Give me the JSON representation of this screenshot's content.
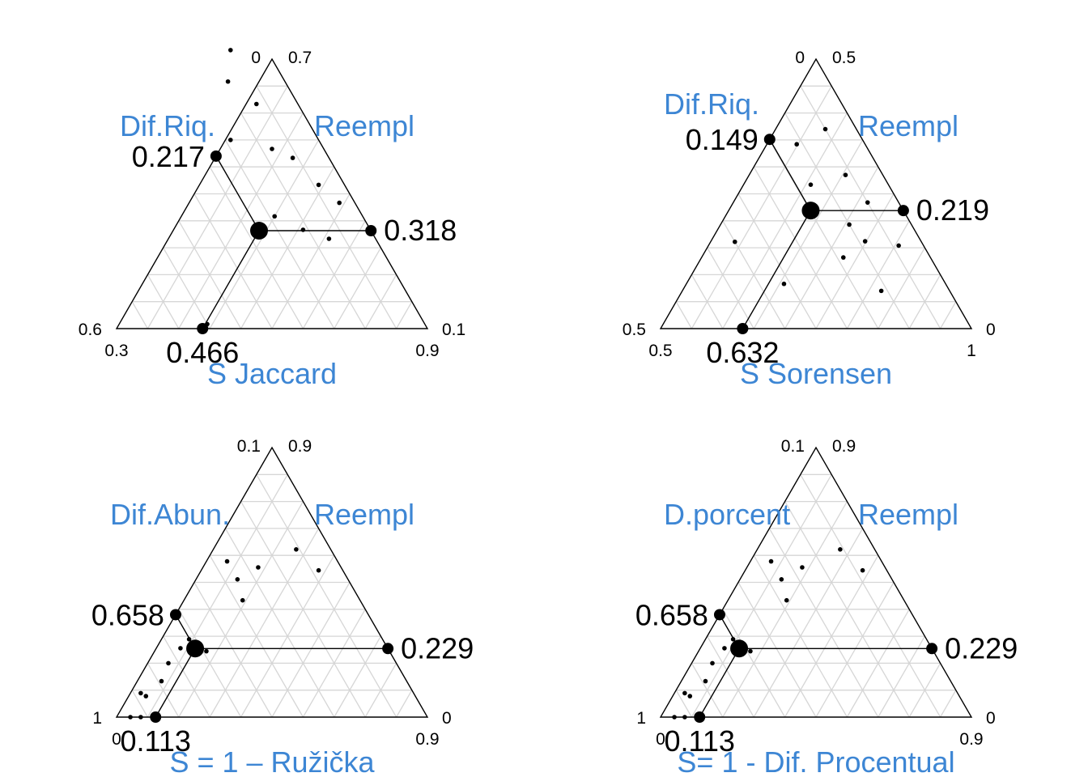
{
  "chart_data": [
    {
      "type": "scatter",
      "subtype": "ternary",
      "title": "S Jaccard",
      "left_label": "Dif.Riq.",
      "right_label": "Reempl",
      "ticks": {
        "top_left": "0",
        "top_right": "0.7",
        "left_top": "0.6",
        "left_bottom": "0.3",
        "right_top": "0.1",
        "right_bottom": "0.9"
      },
      "ranges": {
        "similarity": [
          0.3,
          0.9
        ],
        "dif": [
          0,
          0.6
        ],
        "reempl": [
          0.1,
          0.7
        ]
      },
      "mean": {
        "similarity": 0.466,
        "dif": 0.217,
        "reempl": 0.318
      },
      "mean_labels": {
        "similarity": "0.466",
        "dif": "0.217",
        "reempl": "0.318"
      },
      "points": [
        {
          "similarity": 0.24,
          "dif": 0.11,
          "reempl": 0.65
        },
        {
          "similarity": 0.21,
          "dif": 0.07,
          "reempl": 0.72
        },
        {
          "similarity": 0.32,
          "dif": 0.08,
          "reempl": 0.6
        },
        {
          "similarity": 0.31,
          "dif": 0.17,
          "reempl": 0.52
        },
        {
          "similarity": 0.4,
          "dif": 0.1,
          "reempl": 0.5
        },
        {
          "similarity": 0.48,
          "dif": 0.17,
          "reempl": 0.35
        },
        {
          "similarity": 0.45,
          "dif": 0.07,
          "reempl": 0.48
        },
        {
          "similarity": 0.53,
          "dif": 0.05,
          "reempl": 0.42
        },
        {
          "similarity": 0.55,
          "dif": 0.13,
          "reempl": 0.32
        },
        {
          "similarity": 0.59,
          "dif": 0.03,
          "reempl": 0.38
        },
        {
          "similarity": 0.61,
          "dif": 0.09,
          "reempl": 0.3
        },
        {
          "similarity": 0.47,
          "dif": 0.42,
          "reempl": 0.11
        }
      ]
    },
    {
      "type": "scatter",
      "subtype": "ternary",
      "title": "S Sorensen",
      "left_label": "Dif.Riq.",
      "right_label": "Reempl",
      "ticks": {
        "top_left": "0",
        "top_right": "0.5",
        "left_top": "0.5",
        "left_bottom": "0.5",
        "right_top": "0",
        "right_bottom": "1"
      },
      "ranges": {
        "similarity": [
          0.5,
          1
        ],
        "dif": [
          0,
          0.5
        ],
        "reempl": [
          0,
          0.5
        ]
      },
      "mean": {
        "similarity": 0.632,
        "dif": 0.149,
        "reempl": 0.219
      },
      "mean_labels": {
        "similarity": "0.632",
        "dif": "0.149",
        "reempl": "0.219"
      },
      "points": [
        {
          "similarity": 0.548,
          "dif": 0.11,
          "reempl": 0.342
        },
        {
          "similarity": 0.539,
          "dif": 0.3,
          "reempl": 0.161
        },
        {
          "similarity": 0.58,
          "dif": 0.05,
          "reempl": 0.37
        },
        {
          "similarity": 0.608,
          "dif": 0.125,
          "reempl": 0.267
        },
        {
          "similarity": 0.655,
          "dif": 0.06,
          "reempl": 0.285
        },
        {
          "similarity": 0.716,
          "dif": 0.05,
          "reempl": 0.234
        },
        {
          "similarity": 0.707,
          "dif": 0.1,
          "reempl": 0.193
        },
        {
          "similarity": 0.748,
          "dif": 0.09,
          "reempl": 0.162
        },
        {
          "similarity": 0.728,
          "dif": 0.14,
          "reempl": 0.132
        },
        {
          "similarity": 0.82,
          "dif": 0.11,
          "reempl": 0.07
        },
        {
          "similarity": 0.806,
          "dif": 0.04,
          "reempl": 0.154
        },
        {
          "similarity": 0.657,
          "dif": 0.26,
          "reempl": 0.083
        }
      ]
    },
    {
      "type": "scatter",
      "subtype": "ternary",
      "title": "S = 1 – Ružička",
      "left_label": "Dif.Abun.",
      "right_label": "Reempl",
      "ticks": {
        "top_left": "0.1",
        "top_right": "0.9",
        "left_top": "1",
        "left_bottom": "0",
        "right_top": "0",
        "right_bottom": "0.9"
      },
      "ranges": {
        "similarity": [
          0,
          0.9
        ],
        "dif": [
          0.1,
          1
        ],
        "reempl": [
          0,
          0.9
        ]
      },
      "mean": {
        "similarity": 0.113,
        "dif": 0.658,
        "reempl": 0.229
      },
      "mean_labels": {
        "similarity": "0.113",
        "dif": "0.658",
        "reempl": "0.229"
      },
      "points": [
        {
          "similarity": 0.24,
          "dif": 0.2,
          "reempl": 0.56
        },
        {
          "similarity": 0.06,
          "dif": 0.42,
          "reempl": 0.52
        },
        {
          "similarity": 0.16,
          "dif": 0.34,
          "reempl": 0.5
        },
        {
          "similarity": 0.12,
          "dif": 0.42,
          "reempl": 0.46
        },
        {
          "similarity": 0.17,
          "dif": 0.44,
          "reempl": 0.39
        },
        {
          "similarity": 0.34,
          "dif": 0.17,
          "reempl": 0.49
        },
        {
          "similarity": 0.15,
          "dif": 0.63,
          "reempl": 0.22
        },
        {
          "similarity": 0.07,
          "dif": 0.7,
          "reempl": 0.23
        },
        {
          "similarity": 0.08,
          "dif": 0.66,
          "reempl": 0.26
        },
        {
          "similarity": 0.06,
          "dif": 0.76,
          "reempl": 0.18
        },
        {
          "similarity": 0.05,
          "dif": 0.88,
          "reempl": 0.07
        },
        {
          "similarity": 0.07,
          "dif": 0.81,
          "reempl": 0.12
        },
        {
          "similarity": 0.04,
          "dif": 0.96,
          "reempl": 0.0
        },
        {
          "similarity": 0.07,
          "dif": 0.93,
          "reempl": 0.0
        },
        {
          "similarity": 0.03,
          "dif": 0.89,
          "reempl": 0.08
        }
      ]
    },
    {
      "type": "scatter",
      "subtype": "ternary",
      "title": "S= 1 - Dif. Procentual",
      "left_label": "D.porcent",
      "right_label": "Reempl",
      "ticks": {
        "top_left": "0.1",
        "top_right": "0.9",
        "left_top": "1",
        "left_bottom": "0",
        "right_top": "0",
        "right_bottom": "0.9"
      },
      "ranges": {
        "similarity": [
          0,
          0.9
        ],
        "dif": [
          0.1,
          1
        ],
        "reempl": [
          0,
          0.9
        ]
      },
      "mean": {
        "similarity": 0.113,
        "dif": 0.658,
        "reempl": 0.229
      },
      "mean_labels": {
        "similarity": "0.113",
        "dif": "0.658",
        "reempl": "0.229"
      },
      "points": [
        {
          "similarity": 0.24,
          "dif": 0.2,
          "reempl": 0.56
        },
        {
          "similarity": 0.06,
          "dif": 0.42,
          "reempl": 0.52
        },
        {
          "similarity": 0.16,
          "dif": 0.34,
          "reempl": 0.5
        },
        {
          "similarity": 0.12,
          "dif": 0.42,
          "reempl": 0.46
        },
        {
          "similarity": 0.17,
          "dif": 0.44,
          "reempl": 0.39
        },
        {
          "similarity": 0.34,
          "dif": 0.17,
          "reempl": 0.49
        },
        {
          "similarity": 0.15,
          "dif": 0.63,
          "reempl": 0.22
        },
        {
          "similarity": 0.07,
          "dif": 0.7,
          "reempl": 0.23
        },
        {
          "similarity": 0.08,
          "dif": 0.66,
          "reempl": 0.26
        },
        {
          "similarity": 0.06,
          "dif": 0.76,
          "reempl": 0.18
        },
        {
          "similarity": 0.05,
          "dif": 0.88,
          "reempl": 0.07
        },
        {
          "similarity": 0.07,
          "dif": 0.81,
          "reempl": 0.12
        },
        {
          "similarity": 0.04,
          "dif": 0.96,
          "reempl": 0.0
        },
        {
          "similarity": 0.07,
          "dif": 0.93,
          "reempl": 0.0
        },
        {
          "similarity": 0.03,
          "dif": 0.89,
          "reempl": 0.08
        }
      ]
    }
  ]
}
